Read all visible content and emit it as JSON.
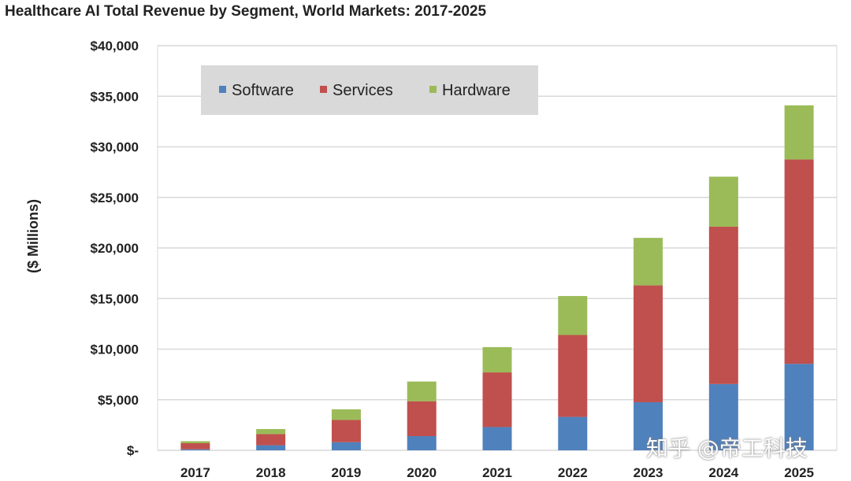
{
  "chart_data": {
    "type": "bar",
    "stacked": true,
    "title": "Healthcare AI Total Revenue by Segment, World Markets: 2017-2025",
    "xlabel": "",
    "ylabel": "($ Millions)",
    "ylim": [
      0,
      40000
    ],
    "yticks": [
      0,
      5000,
      10000,
      15000,
      20000,
      25000,
      30000,
      35000,
      40000
    ],
    "ytick_labels": [
      "$-",
      "$5,000",
      "$10,000",
      "$15,000",
      "$20,000",
      "$25,000",
      "$30,000",
      "$35,000",
      "$40,000"
    ],
    "grid": true,
    "legend_position": "top-left",
    "categories": [
      "2017",
      "2018",
      "2019",
      "2020",
      "2021",
      "2022",
      "2023",
      "2024",
      "2025"
    ],
    "series": [
      {
        "name": "Software",
        "color": "#4f81bd",
        "values": [
          100,
          500,
          800,
          1400,
          2300,
          3300,
          4750,
          6550,
          8550
        ]
      },
      {
        "name": "Services",
        "color": "#c0504d",
        "values": [
          600,
          1100,
          2200,
          3450,
          5400,
          8100,
          11550,
          15550,
          20200
        ]
      },
      {
        "name": "Hardware",
        "color": "#9bbb59",
        "values": [
          200,
          500,
          1050,
          1950,
          2500,
          3850,
          4700,
          4950,
          5350
        ]
      }
    ]
  },
  "watermark": "知乎 @帝工科技"
}
